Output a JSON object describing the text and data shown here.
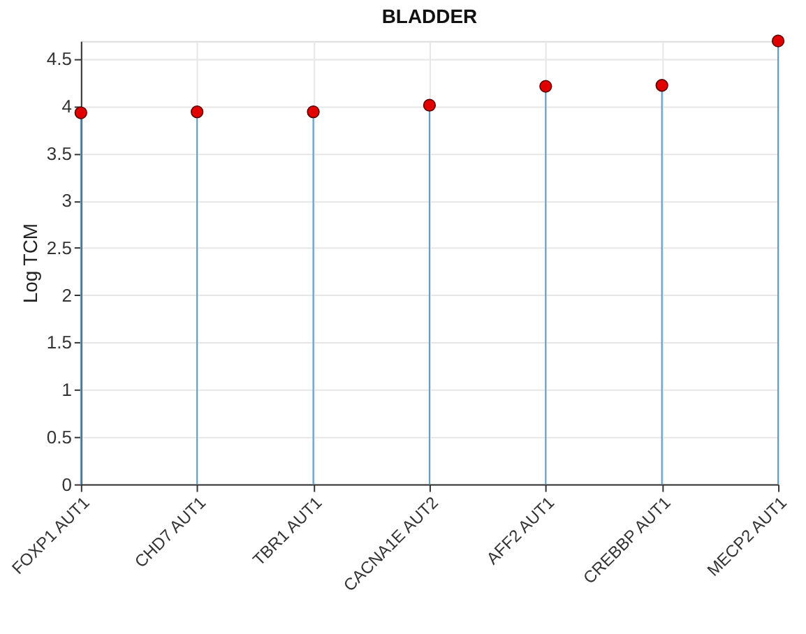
{
  "chart_data": {
    "type": "lollipop",
    "title": "BLADDER",
    "ylabel": "Log TCM",
    "categories": [
      "FOXP1 AUT1",
      "CHD7 AUT1",
      "TBR1 AUT1",
      "CACNA1E AUT2",
      "AFF2 AUT1",
      "CREBBP AUT1",
      "MECP2 AUT1"
    ],
    "series": [
      {
        "color": "#e00000",
        "values": [
          3.93,
          3.94,
          3.94,
          4.01,
          4.21,
          4.22,
          4.69
        ]
      }
    ],
    "ylim": [
      0,
      4.69
    ],
    "yticks": [
      0,
      0.5,
      1,
      1.5,
      2,
      2.5,
      3,
      3.5,
      4,
      4.5
    ],
    "grid": true,
    "marker": "circle"
  }
}
